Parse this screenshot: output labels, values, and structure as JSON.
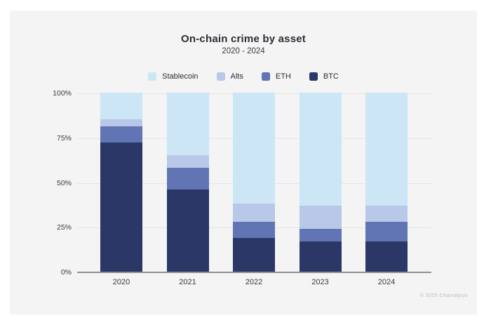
{
  "page": {
    "background_color": "#ffffff",
    "panel_color": "#f4f4f5"
  },
  "header": {
    "title": "On-chain crime by asset",
    "subtitle": "2020 - 2024"
  },
  "legend": {
    "items": [
      {
        "label": "Stablecoin",
        "color": "#cce6f5"
      },
      {
        "label": "Alts",
        "color": "#b9c8e9"
      },
      {
        "label": "ETH",
        "color": "#6175b4"
      },
      {
        "label": "BTC",
        "color": "#2a3767"
      }
    ]
  },
  "chart_data": {
    "type": "bar",
    "stacked": true,
    "unit": "%",
    "title": "On-chain crime by asset",
    "subtitle": "2020 - 2024",
    "xlabel": "",
    "ylabel": "",
    "ylim": [
      0,
      100
    ],
    "grid": true,
    "legend_position": "top",
    "categories": [
      "2020",
      "2021",
      "2022",
      "2023",
      "2024"
    ],
    "series": [
      {
        "name": "BTC",
        "color": "#2a3767",
        "values": [
          72,
          46,
          19,
          17,
          17
        ]
      },
      {
        "name": "ETH",
        "color": "#6175b4",
        "values": [
          9,
          12,
          9,
          7,
          11
        ]
      },
      {
        "name": "Alts",
        "color": "#b9c8e9",
        "values": [
          4,
          7,
          10,
          13,
          9
        ]
      },
      {
        "name": "Stablecoin",
        "color": "#cce6f5",
        "values": [
          15,
          35,
          62,
          63,
          63
        ]
      }
    ],
    "yticks": [
      {
        "value": 0,
        "label": "0%"
      },
      {
        "value": 25,
        "label": "25%"
      },
      {
        "value": 50,
        "label": "50%"
      },
      {
        "value": 75,
        "label": "75%"
      },
      {
        "value": 100,
        "label": "100%"
      }
    ]
  },
  "footer": {
    "copyright": "© 2025 Chainalysis"
  }
}
